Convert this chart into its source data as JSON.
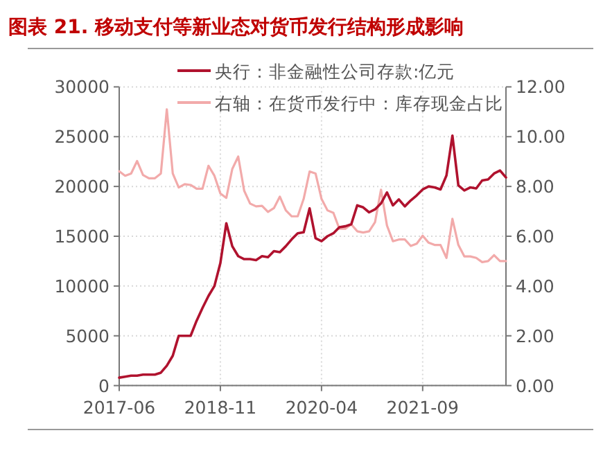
{
  "chart_data": {
    "type": "line",
    "title": "图表 21. 移动支付等新业态对货币发行结构形成影响",
    "x": [
      "2017-06",
      "2017-07",
      "2017-08",
      "2017-09",
      "2017-10",
      "2017-11",
      "2017-12",
      "2018-01",
      "2018-02",
      "2018-03",
      "2018-04",
      "2018-05",
      "2018-06",
      "2018-07",
      "2018-08",
      "2018-09",
      "2018-10",
      "2018-11",
      "2018-12",
      "2019-01",
      "2019-02",
      "2019-03",
      "2019-04",
      "2019-05",
      "2019-06",
      "2019-07",
      "2019-08",
      "2019-09",
      "2019-10",
      "2019-11",
      "2019-12",
      "2020-01",
      "2020-02",
      "2020-03",
      "2020-04",
      "2020-05",
      "2020-06",
      "2020-07",
      "2020-08",
      "2020-09",
      "2020-10",
      "2020-11",
      "2020-12",
      "2021-01",
      "2021-02",
      "2021-03",
      "2021-04",
      "2021-05",
      "2021-06",
      "2021-07",
      "2021-08",
      "2021-09",
      "2021-10",
      "2021-11",
      "2021-12",
      "2022-01",
      "2022-02",
      "2022-03",
      "2022-04",
      "2022-05",
      "2022-06",
      "2022-07",
      "2022-08",
      "2022-09",
      "2022-10",
      "2022-11"
    ],
    "series": [
      {
        "name": "央行：非金融性公司存款:亿元",
        "color": "#b0122e",
        "values": [
          800,
          900,
          1000,
          1000,
          1100,
          1100,
          1100,
          1300,
          2000,
          3000,
          5000,
          5000,
          5000,
          6500,
          7800,
          9000,
          10000,
          12300,
          16300,
          14000,
          13000,
          12700,
          12700,
          12600,
          13000,
          12900,
          13500,
          13400,
          14000,
          14700,
          15300,
          15400,
          17800,
          14800,
          14500,
          15000,
          15300,
          15900,
          16000,
          16200,
          18100,
          17900,
          17400,
          17700,
          18300,
          19400,
          18100,
          18700,
          18000,
          18600,
          19100,
          19700,
          20000,
          19900,
          19700,
          21100,
          25100,
          20100,
          19600,
          19900,
          19800,
          20600,
          20700,
          21300,
          21600,
          20900
        ]
      },
      {
        "name": "右轴：在货币发行中：库存现金占比",
        "color": "#f2aaaa",
        "axis": "y2",
        "values": [
          8.61,
          8.43,
          8.52,
          9.02,
          8.46,
          8.33,
          8.33,
          8.52,
          11.1,
          8.52,
          7.96,
          8.09,
          8.06,
          7.91,
          7.91,
          8.83,
          8.43,
          7.72,
          7.54,
          8.7,
          9.2,
          7.83,
          7.31,
          7.2,
          7.22,
          6.98,
          7.13,
          7.59,
          7.04,
          6.8,
          6.8,
          7.5,
          8.6,
          8.52,
          7.5,
          7.04,
          6.94,
          6.3,
          6.3,
          6.48,
          6.2,
          6.15,
          6.2,
          6.57,
          7.87,
          6.43,
          5.8,
          5.87,
          5.87,
          5.61,
          5.7,
          6.02,
          5.74,
          5.65,
          5.65,
          5.13,
          6.7,
          5.65,
          5.19,
          5.19,
          5.13,
          4.96,
          5.0,
          5.24,
          5.0,
          5.0
        ]
      }
    ],
    "xlim": [
      "2017-06",
      "2022-11"
    ],
    "xticks": [
      "2017-06",
      "2018-11",
      "2020-04",
      "2021-09"
    ],
    "ylim": [
      0,
      30000
    ],
    "yticks": [
      0,
      5000,
      10000,
      15000,
      20000,
      25000,
      30000
    ],
    "y2lim": [
      0,
      12
    ],
    "y2ticks": [
      {
        "value": 0,
        "label": "0.00"
      },
      {
        "value": 2,
        "label": "2.00"
      },
      {
        "value": 4,
        "label": "4.00"
      },
      {
        "value": 6,
        "label": "6.00"
      },
      {
        "value": 8,
        "label": "8.00"
      },
      {
        "value": 10,
        "label": "10.00"
      },
      {
        "value": 12,
        "label": "12.00"
      }
    ],
    "grid": true,
    "legend": "top",
    "marker": "none",
    "line_style": "solid"
  }
}
